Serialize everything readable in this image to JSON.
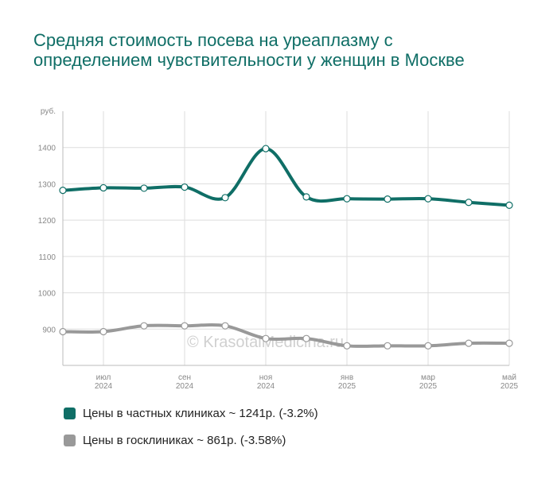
{
  "title": "Средняя стоимость посева на уреаплазму с определением чувствительности у женщин в Москве",
  "watermark": "© KrasotaiMedicina.ru",
  "chart_data": {
    "type": "line",
    "y_unit_label": "руб.",
    "ylim": [
      800,
      1500
    ],
    "y_ticks": [
      900,
      1000,
      1100,
      1200,
      1300,
      1400
    ],
    "x_ticks": [
      {
        "month": "июл",
        "year": "2024",
        "index": 1
      },
      {
        "month": "сен",
        "year": "2024",
        "index": 3
      },
      {
        "month": "ноя",
        "year": "2024",
        "index": 5
      },
      {
        "month": "янв",
        "year": "2025",
        "index": 7
      },
      {
        "month": "мар",
        "year": "2025",
        "index": 9
      },
      {
        "month": "май",
        "year": "2025",
        "index": 11
      }
    ],
    "n_points": 12,
    "grid": true,
    "legend_position": "bottom",
    "series": [
      {
        "name": "Цены в частных клиниках ~ 1241р. (-3.2%)",
        "color": "#0f6e66",
        "values": [
          1282,
          1289,
          1288,
          1291,
          1262,
          1397,
          1264,
          1259,
          1258,
          1259,
          1249,
          1241
        ]
      },
      {
        "name": "Цены в госклиниках ~ 861р. (-3.58%)",
        "color": "#999999",
        "values": [
          893,
          893,
          909,
          909,
          909,
          874,
          874,
          854,
          854,
          854,
          861,
          861
        ]
      }
    ]
  }
}
